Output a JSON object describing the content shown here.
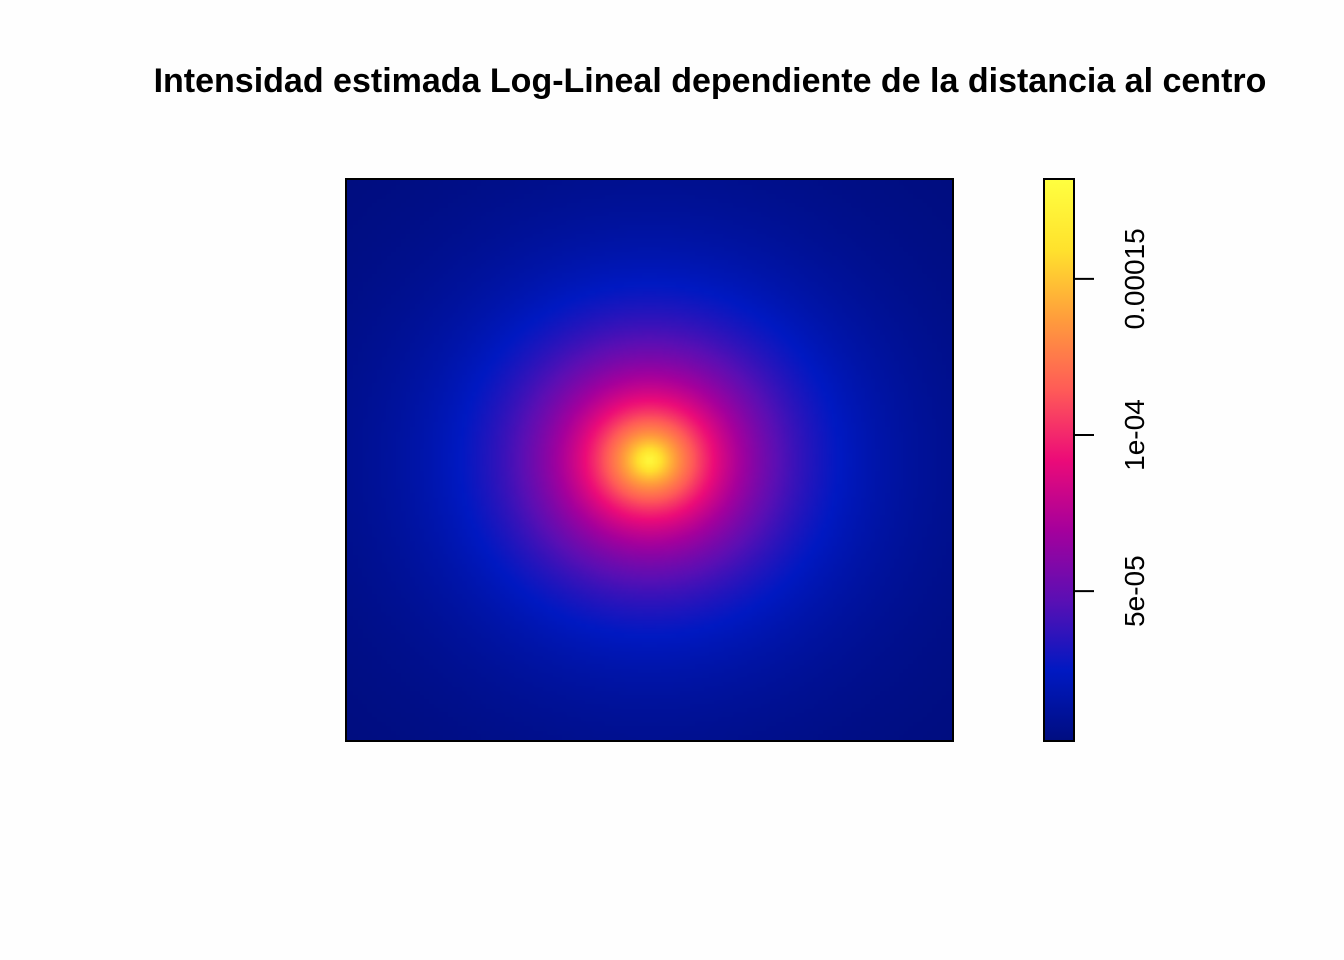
{
  "chart_data": {
    "type": "heatmap",
    "title": "Intensidad estimada Log-Lineal dependiente de la distancia al centro",
    "subtitle": "",
    "xlabel": "",
    "ylabel": "",
    "x_range": [
      0,
      1
    ],
    "y_range": [
      0,
      1
    ],
    "center": [
      0.5,
      0.5
    ],
    "intensity_model": "log-linear in distance to center",
    "intensity_at_center": 0.00018,
    "intensity_at_corner": 2e-06,
    "colormap": "plasma-like (dark blue to magenta to yellow)",
    "colorbar": {
      "min": 2e-06,
      "max": 0.000182,
      "ticks": [
        {
          "value": 5e-05,
          "label": "5e-05"
        },
        {
          "value": 0.0001,
          "label": "1e-04"
        },
        {
          "value": 0.00015,
          "label": "0.00015"
        }
      ],
      "placement": "right"
    },
    "grid": false,
    "legend": "colorbar-right"
  },
  "colors": {
    "background": "#fefefe",
    "stops": [
      "#000d80",
      "#0019c2",
      "#5a0fb4",
      "#a5009c",
      "#ec0b78",
      "#ff5b57",
      "#ff9c3c",
      "#ffe22d",
      "#ffff40"
    ]
  }
}
